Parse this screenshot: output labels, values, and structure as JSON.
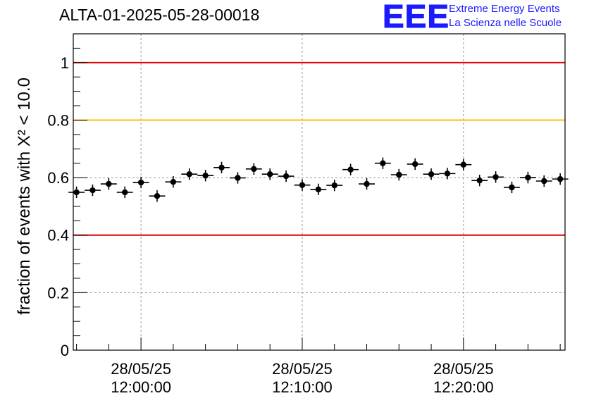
{
  "header": {
    "title": "ALTA-01-2025-05-28-00018",
    "logo_text": "EEE",
    "logo_line1": "Extreme Energy Events",
    "logo_line2": "La Scienza nelle Scuole",
    "logo_color": "#1a1aff"
  },
  "chart_data": {
    "type": "scatter",
    "title": "ALTA-01-2025-05-28-00018",
    "ylabel": "fraction of events with X² < 10.0",
    "xlabel": "",
    "ylim": [
      0,
      1.1
    ],
    "xlim_minutes": [
      -4.2,
      26.3
    ],
    "yticks": [
      "0",
      "0.2",
      "0.4",
      "0.6",
      "0.8",
      "1"
    ],
    "xticks": [
      {
        "date": "28/05/25",
        "time": "12:00:00"
      },
      {
        "date": "28/05/25",
        "time": "12:10:00"
      },
      {
        "date": "28/05/25",
        "time": "12:20:00"
      }
    ],
    "grid": true,
    "reference_lines": [
      {
        "y": 1.0,
        "color": "#e00000"
      },
      {
        "y": 0.8,
        "color": "#ffc000"
      },
      {
        "y": 0.4,
        "color": "#e00000"
      }
    ],
    "series": [
      {
        "x_minutes": [
          -4,
          -3,
          -2,
          -1,
          0,
          1,
          2,
          3,
          4,
          5,
          6,
          7,
          8,
          9,
          10,
          11,
          12,
          13,
          14,
          15,
          16,
          17,
          18,
          19,
          20,
          21,
          22,
          23,
          24,
          25,
          26
        ],
        "values": [
          0.549,
          0.556,
          0.578,
          0.549,
          0.583,
          0.536,
          0.585,
          0.612,
          0.607,
          0.635,
          0.599,
          0.63,
          0.612,
          0.605,
          0.574,
          0.559,
          0.573,
          0.628,
          0.578,
          0.65,
          0.61,
          0.647,
          0.612,
          0.614,
          0.645,
          0.59,
          0.602,
          0.566,
          0.6,
          0.588,
          0.595
        ],
        "yerr": 0.02
      }
    ]
  }
}
